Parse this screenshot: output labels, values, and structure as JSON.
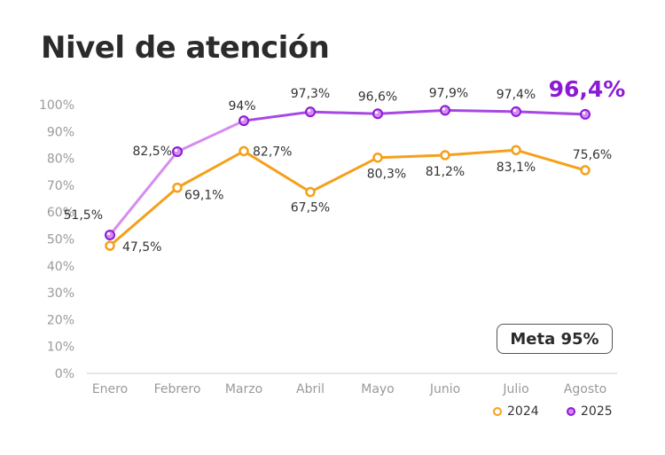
{
  "title": "Nivel de atención",
  "badge": "Meta 95%",
  "highlight": "96,4%",
  "colors": {
    "2024": "#f5a01a",
    "2025": "#8b1ad6",
    "2025_early": "#d68cf0",
    "grid": "#dddddd",
    "axis_text": "#9a9a9a",
    "label_text": "#333333"
  },
  "chart_data": {
    "type": "line",
    "categories": [
      "Enero",
      "Febrero",
      "Marzo",
      "Abril",
      "Mayo",
      "Junio",
      "Julio",
      "Agosto"
    ],
    "ylim": [
      0,
      100
    ],
    "y_ticks": [
      0,
      10,
      20,
      30,
      40,
      50,
      60,
      70,
      80,
      90,
      100
    ],
    "y_tick_labels": [
      "0%",
      "10%",
      "20%",
      "30%",
      "40%",
      "50%",
      "60%",
      "70%",
      "80%",
      "90%",
      "100%"
    ],
    "grid": false,
    "legend_position": "bottom-right",
    "series": [
      {
        "name": "2024",
        "values": [
          47.5,
          69.1,
          82.7,
          67.5,
          80.3,
          81.2,
          83.1,
          75.6
        ],
        "labels": [
          "47,5%",
          "69,1%",
          "82,7%",
          "67,5%",
          "80,3%",
          "81,2%",
          "83,1%",
          "75,6%"
        ]
      },
      {
        "name": "2025",
        "values": [
          51.5,
          82.5,
          94,
          97.3,
          96.6,
          97.9,
          97.4,
          96.4
        ],
        "labels": [
          "51,5%",
          "82,5%",
          "94%",
          "97,3%",
          "96,6%",
          "97,9%",
          "97,4%",
          ""
        ]
      }
    ]
  }
}
